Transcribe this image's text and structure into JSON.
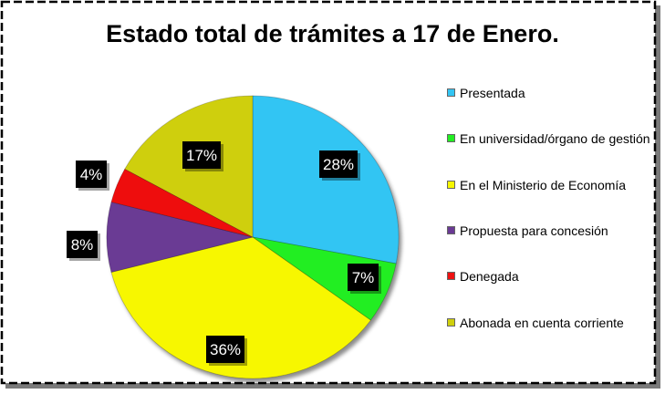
{
  "chart_data": {
    "type": "pie",
    "title": "Estado total de trámites a 17 de Enero.",
    "start_angle_deg": 0,
    "direction": "clockwise",
    "legend_position": "right",
    "slices": [
      {
        "label": "Presentada",
        "value": 28,
        "display": "28%",
        "color": "#33c5f3"
      },
      {
        "label": "En universidad/órgano de gestión",
        "value": 7,
        "display": "7%",
        "color": "#22ee22"
      },
      {
        "label": "En el Ministerio de Economía",
        "value": 36,
        "display": "36%",
        "color": "#f7f700"
      },
      {
        "label": "Propuesta para concesión",
        "value": 8,
        "display": "8%",
        "color": "#6a3a94"
      },
      {
        "label": "Denegada",
        "value": 4,
        "display": "4%",
        "color": "#ee1111"
      },
      {
        "label": "Abonada en cuenta corriente",
        "value": 17,
        "display": "17%",
        "color": "#cfcf0c"
      }
    ]
  }
}
